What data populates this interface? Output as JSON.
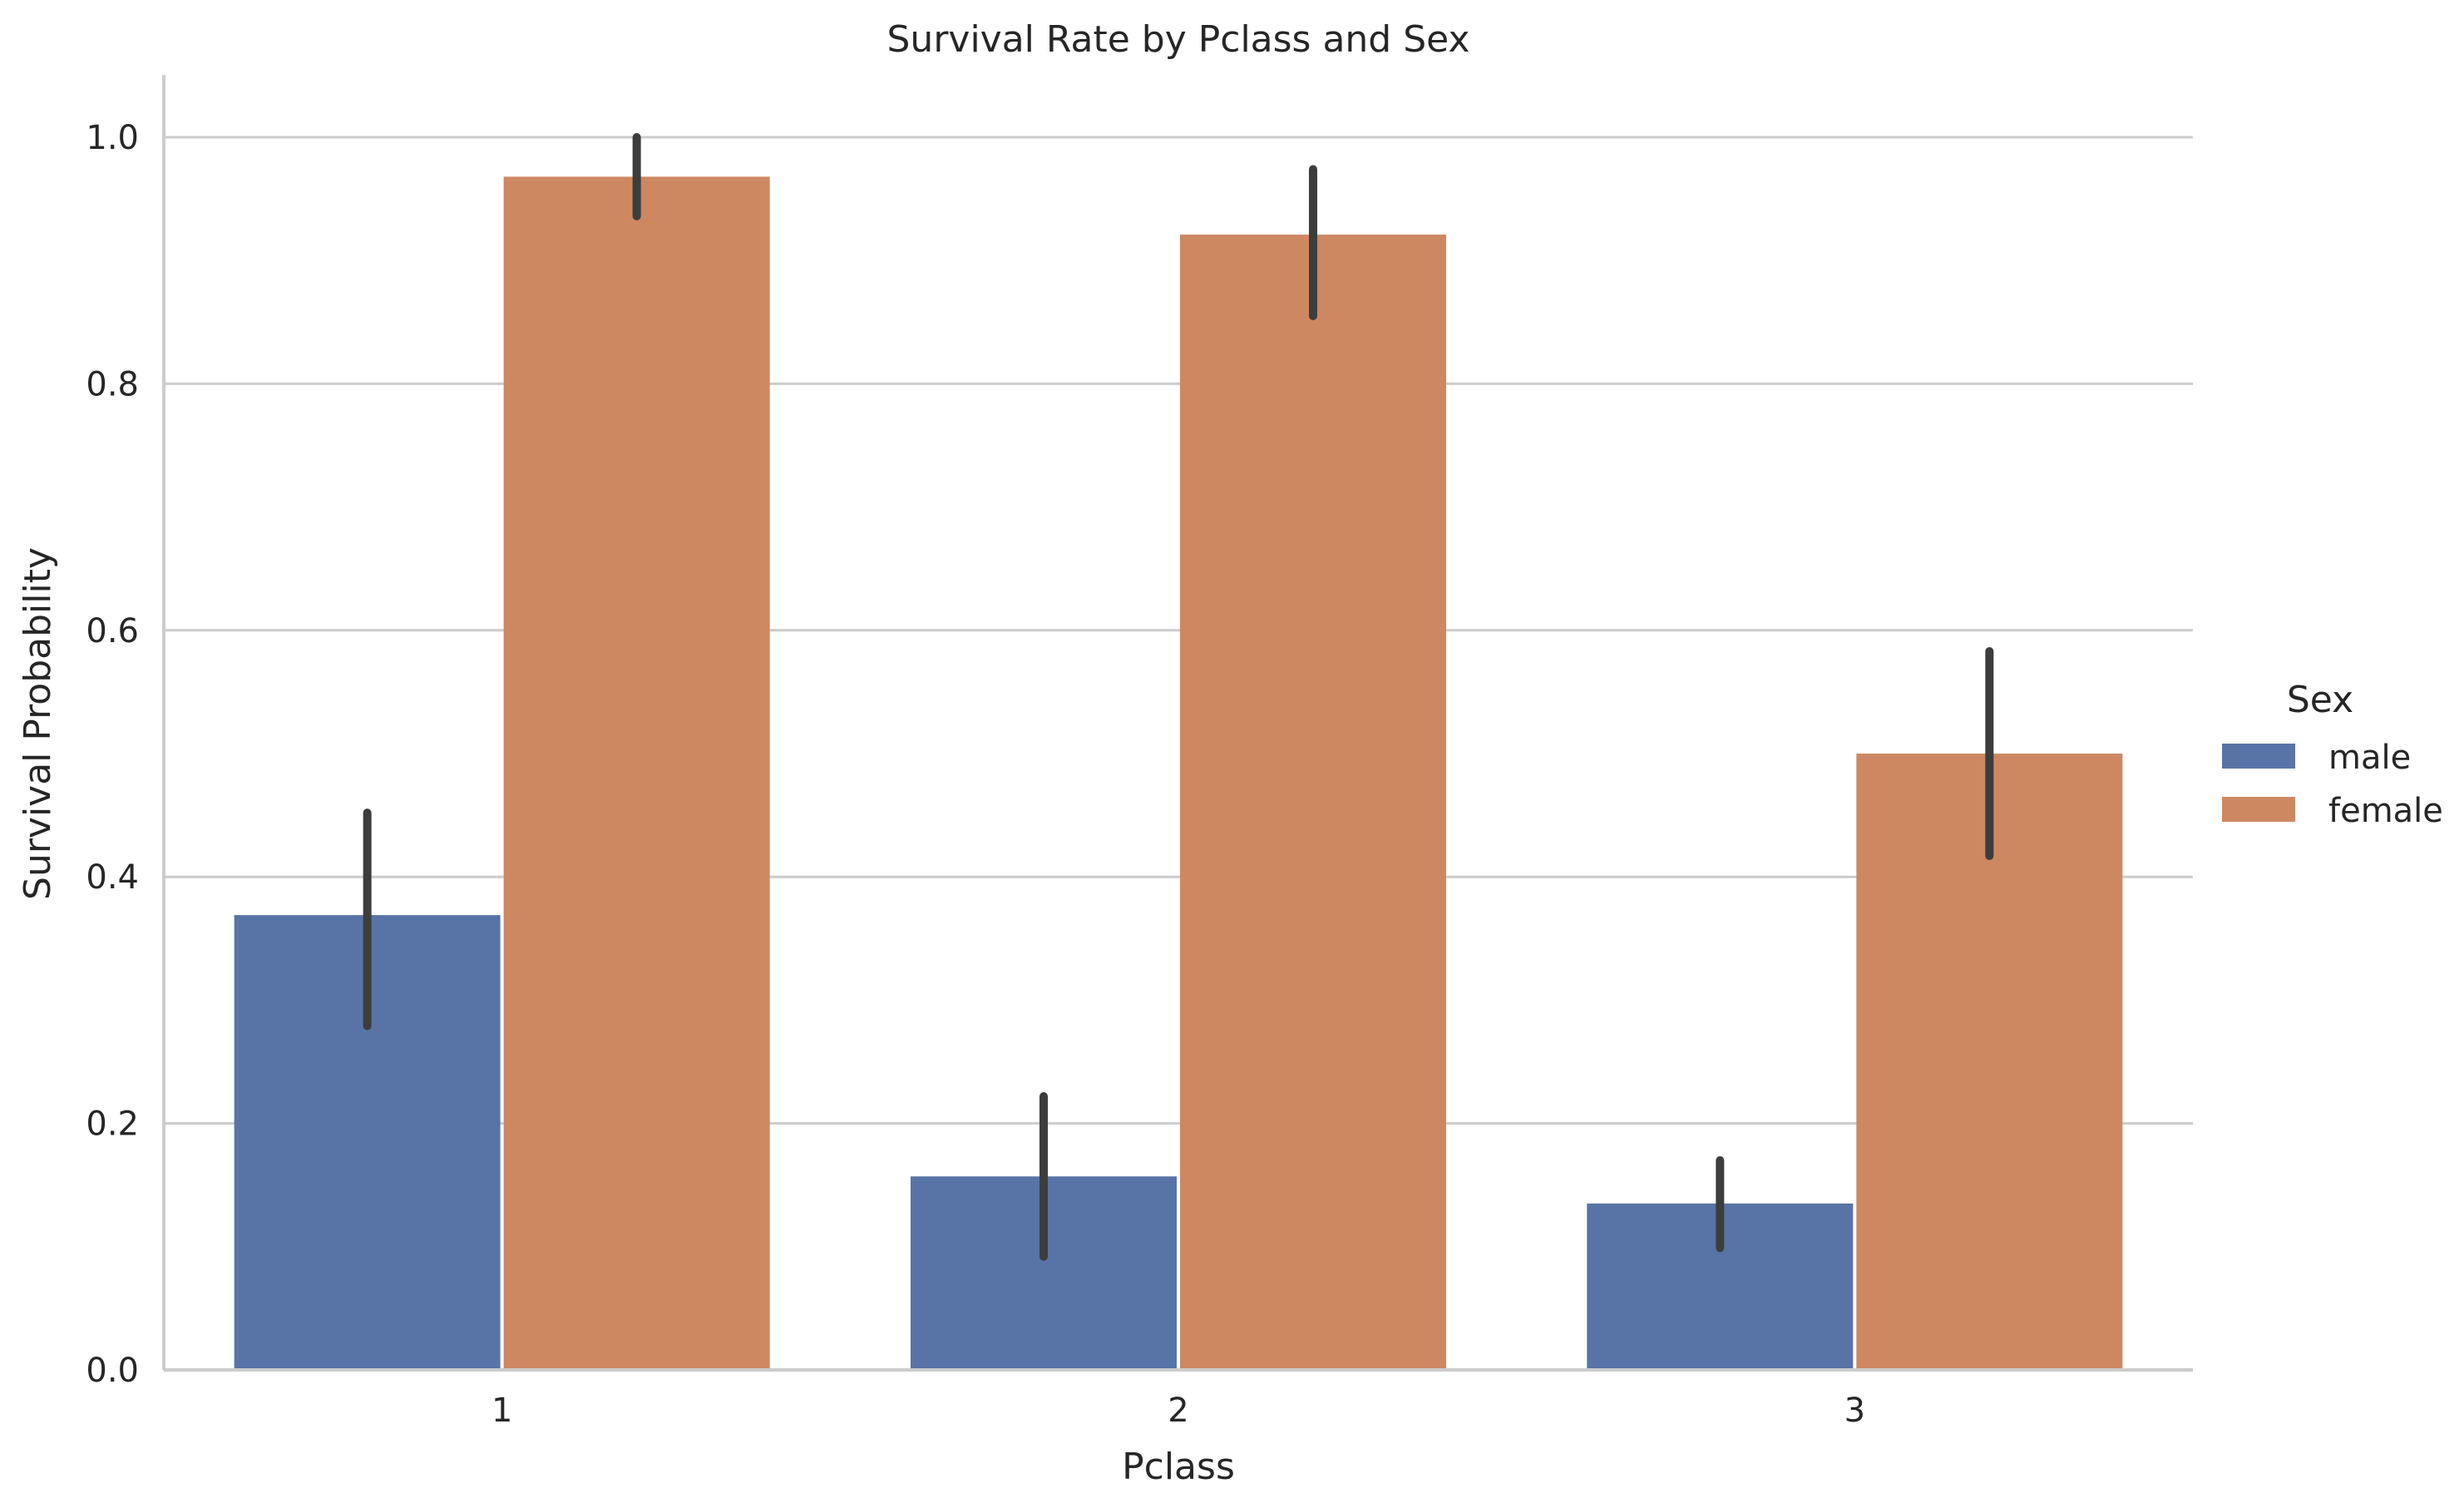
{
  "chart_data": {
    "type": "bar",
    "title": "Survival Rate by Pclass and Sex",
    "xlabel": "Pclass",
    "ylabel": "Survival Probability",
    "categories": [
      "1",
      "2",
      "3"
    ],
    "ylim": [
      0,
      1.05
    ],
    "yticks": [
      "0.0",
      "0.2",
      "0.4",
      "0.6",
      "0.8",
      "1.0"
    ],
    "grid": "horizontal",
    "legend_title": "Sex",
    "legend_position": "right",
    "series": [
      {
        "name": "male",
        "color": "#5874a6",
        "values": [
          0.369,
          0.157,
          0.135
        ],
        "ci_low": [
          0.279,
          0.092,
          0.099
        ],
        "ci_high": [
          0.452,
          0.222,
          0.17
        ]
      },
      {
        "name": "female",
        "color": "#cd8862",
        "values": [
          0.968,
          0.921,
          0.5
        ],
        "ci_low": [
          0.936,
          0.855,
          0.417
        ],
        "ci_high": [
          1.0,
          0.974,
          0.583
        ]
      }
    ],
    "colors": {
      "grid": "#cccccc",
      "axis": "#cccccc",
      "errorbar": "#3d3d3d",
      "text": "#262626"
    }
  }
}
